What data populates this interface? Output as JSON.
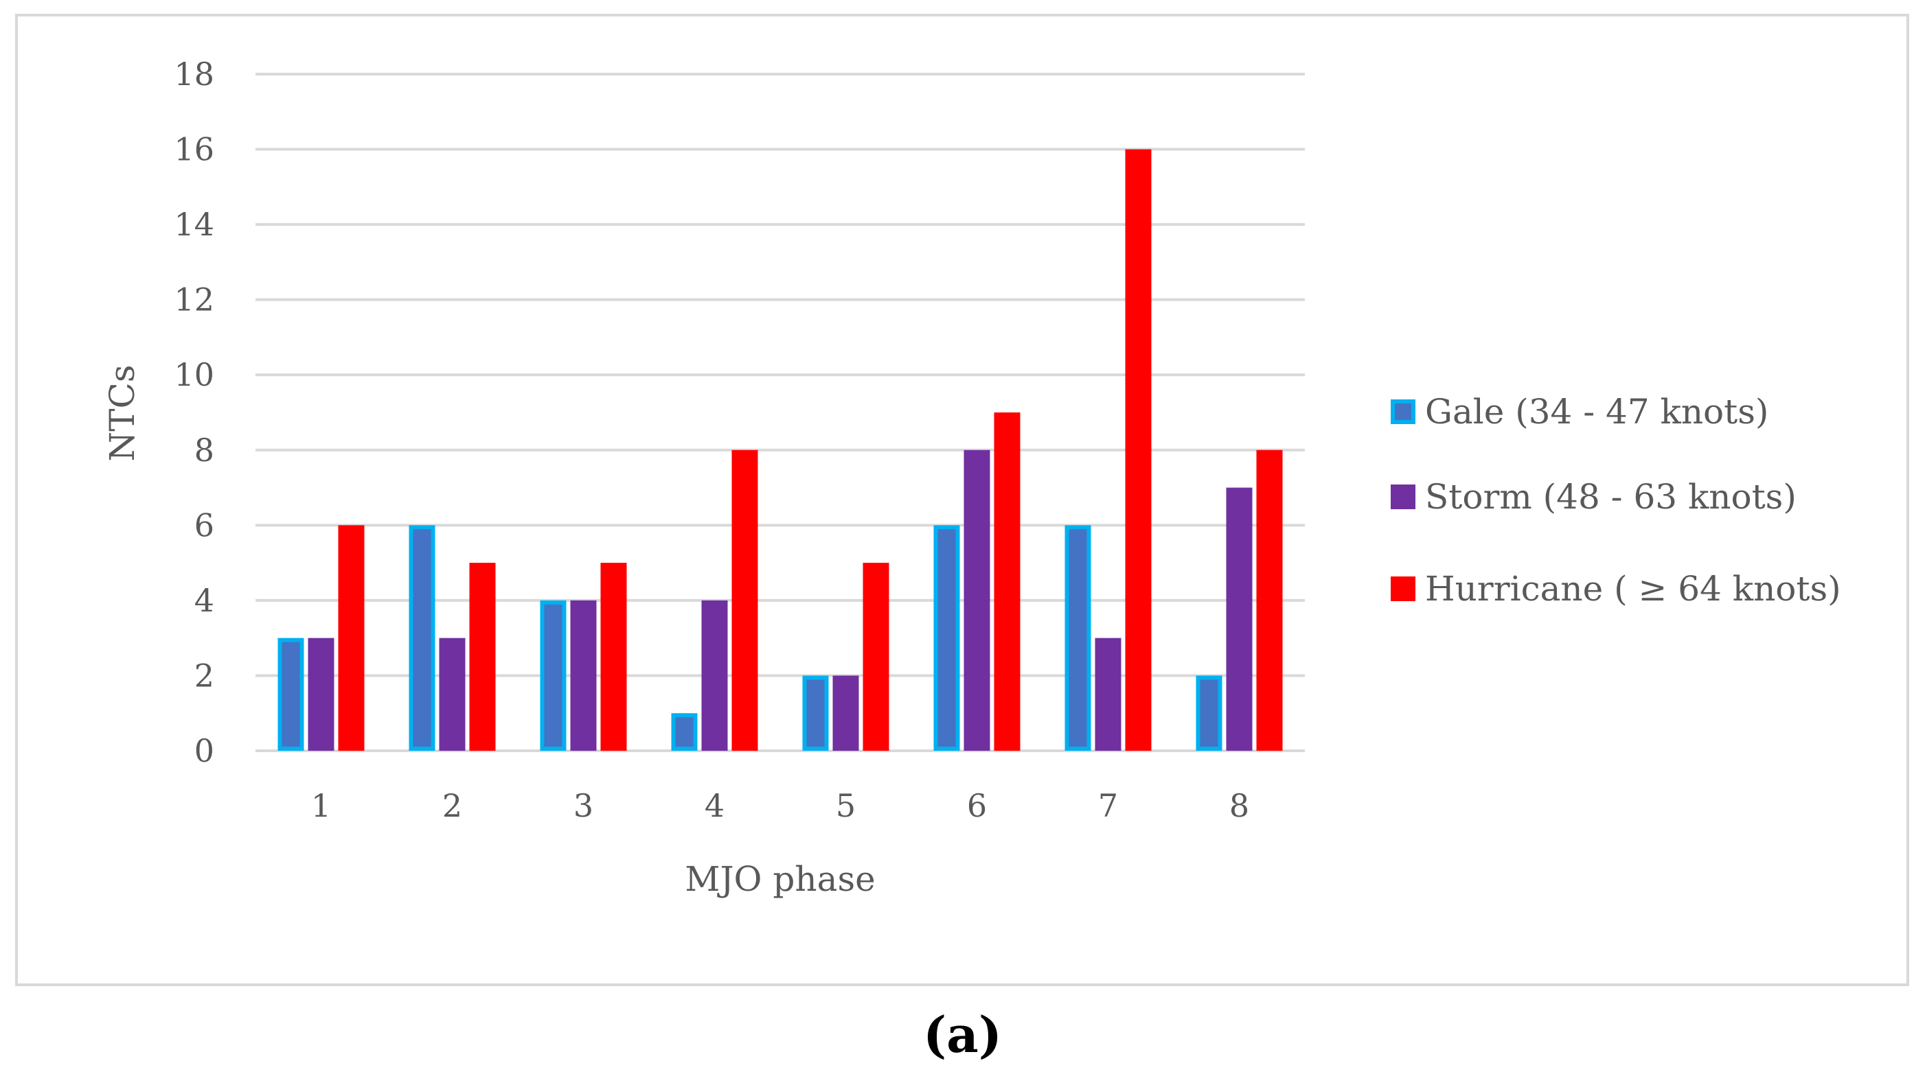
{
  "panel_label": "(a)",
  "chart_data": {
    "type": "bar",
    "title": "",
    "xlabel": "MJO phase",
    "ylabel": "NTCs",
    "categories": [
      "1",
      "2",
      "3",
      "4",
      "5",
      "6",
      "7",
      "8"
    ],
    "series": [
      {
        "name": "Gale (34 - 47 knots)",
        "values": [
          3,
          6,
          4,
          1,
          2,
          6,
          6,
          2
        ],
        "color": "#4472c4",
        "edge": "#00b0f0"
      },
      {
        "name": "Storm (48 - 63 knots)",
        "values": [
          3,
          3,
          4,
          4,
          2,
          8,
          3,
          7
        ],
        "color": "#7030a0",
        "edge": "#7030a0"
      },
      {
        "name": "Hurricane ( ≥ 64 knots)",
        "values": [
          6,
          5,
          5,
          8,
          5,
          9,
          16,
          8
        ],
        "color": "#ff0000",
        "edge": "#ff0000"
      }
    ],
    "ylim": [
      0,
      18
    ],
    "yticks": [
      0,
      2,
      4,
      6,
      8,
      10,
      12,
      14,
      16,
      18
    ],
    "grid": true,
    "legend": "right",
    "colors": {
      "grid": "#d9d9d9",
      "text": "#595959",
      "frame": "#d9d9d9"
    }
  }
}
